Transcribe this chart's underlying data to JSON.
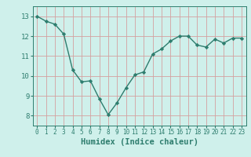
{
  "x": [
    0,
    1,
    2,
    3,
    4,
    5,
    6,
    7,
    8,
    9,
    10,
    11,
    12,
    13,
    14,
    15,
    16,
    17,
    18,
    19,
    20,
    21,
    22,
    23
  ],
  "y": [
    13.0,
    12.75,
    12.6,
    12.1,
    10.3,
    9.7,
    9.75,
    8.85,
    8.05,
    8.65,
    9.4,
    10.05,
    10.2,
    11.1,
    11.35,
    11.75,
    12.0,
    12.0,
    11.55,
    11.45,
    11.85,
    11.65,
    11.9,
    11.9
  ],
  "line_color": "#2e7d6e",
  "marker": "D",
  "marker_size": 2.2,
  "bg_color": "#cff0eb",
  "grid_color": "#d4a0a0",
  "xlabel": "Humidex (Indice chaleur)",
  "xlim": [
    -0.5,
    23.5
  ],
  "ylim": [
    7.5,
    13.5
  ],
  "yticks": [
    8,
    9,
    10,
    11,
    12,
    13
  ],
  "xticks": [
    0,
    1,
    2,
    3,
    4,
    5,
    6,
    7,
    8,
    9,
    10,
    11,
    12,
    13,
    14,
    15,
    16,
    17,
    18,
    19,
    20,
    21,
    22,
    23
  ],
  "tick_fontsize": 5.5,
  "ytick_fontsize": 6.5,
  "label_fontsize": 7.5,
  "linewidth": 1.0
}
